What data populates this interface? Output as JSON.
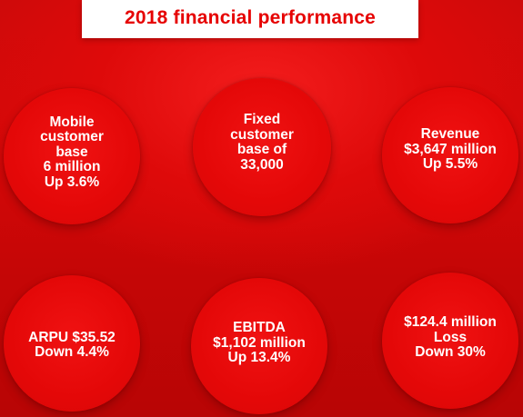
{
  "title": "2018 financial performance",
  "colors": {
    "brand_red": "#e60000",
    "title_background": "#ffffff",
    "text_on_red": "#ffffff"
  },
  "bubbles": [
    {
      "text": "Mobile\ncustomer\nbase\n6 million\nUp 3.6%"
    },
    {
      "text": "Fixed\ncustomer\nbase of\n33,000"
    },
    {
      "text": "Revenue\n$3,647 million\nUp 5.5%"
    },
    {
      "text": "ARPU $35.52\nDown 4.4%"
    },
    {
      "text": "EBITDA\n$1,102 million\nUp 13.4%"
    },
    {
      "text": "$124.4 million\nLoss\nDown 30%"
    }
  ]
}
